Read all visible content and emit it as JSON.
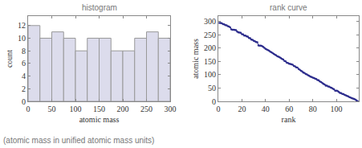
{
  "chart_data": [
    {
      "type": "histogram",
      "title": "histogram",
      "xlabel": "atomic mass",
      "ylabel": "count",
      "bins": [
        0,
        25,
        50,
        75,
        100,
        125,
        150,
        175,
        200,
        225,
        250,
        275,
        300
      ],
      "counts": [
        12,
        10,
        11,
        10,
        8,
        10,
        10,
        8,
        8,
        10,
        11,
        10
      ],
      "color": "#dcdcec",
      "xlim": [
        0,
        300
      ],
      "xticks": [
        0,
        50,
        100,
        150,
        200,
        250,
        300
      ],
      "ylim": [
        0,
        13.5
      ],
      "yticks": [
        0,
        2,
        4,
        6,
        8,
        10,
        12
      ],
      "grid": false
    },
    {
      "type": "line",
      "title": "rank curve",
      "xlabel": "rank",
      "ylabel": "atomic mass",
      "x": [
        1,
        2,
        3,
        4,
        5,
        6,
        7,
        8,
        9,
        10,
        11,
        12,
        13,
        14,
        15,
        16,
        17,
        18,
        19,
        20,
        21,
        22,
        23,
        24,
        25,
        26,
        27,
        28,
        29,
        30,
        31,
        32,
        33,
        34,
        35,
        36,
        37,
        38,
        39,
        40,
        41,
        42,
        43,
        44,
        45,
        46,
        47,
        48,
        49,
        50,
        51,
        52,
        53,
        54,
        55,
        56,
        57,
        58,
        59,
        60,
        61,
        62,
        63,
        64,
        65,
        66,
        67,
        68,
        69,
        70,
        71,
        72,
        73,
        74,
        75,
        76,
        77,
        78,
        79,
        80,
        81,
        82,
        83,
        84,
        85,
        86,
        87,
        88,
        89,
        90,
        91,
        92,
        93,
        94,
        95,
        96,
        97,
        98,
        99,
        100,
        101,
        102,
        103,
        104,
        105,
        106,
        107,
        108,
        109,
        110,
        111,
        112,
        113,
        114,
        115,
        116,
        117,
        118
      ],
      "values": [
        294,
        294,
        293,
        290,
        289,
        286,
        285,
        282,
        281,
        278,
        270,
        269,
        269,
        268,
        267,
        262,
        259,
        258,
        257,
        252,
        251,
        247,
        247,
        244,
        243,
        238.03,
        237,
        232.04,
        231.04,
        227,
        226,
        223,
        222,
        210,
        209,
        208.98,
        207.2,
        204.38,
        200.59,
        196.97,
        195.08,
        192.22,
        190.23,
        186.21,
        183.84,
        180.95,
        178.49,
        174.97,
        173.05,
        168.93,
        167.26,
        164.93,
        162.5,
        158.93,
        157.25,
        151.96,
        150.36,
        145,
        144.24,
        140.91,
        140.12,
        138.91,
        137.33,
        132.91,
        131.29,
        127.6,
        126.9,
        121.76,
        118.71,
        114.82,
        112.41,
        107.87,
        106.42,
        102.91,
        101.07,
        98,
        95.95,
        92.91,
        91.22,
        88.91,
        87.62,
        85.47,
        83.8,
        79.9,
        78.97,
        74.92,
        72.63,
        69.72,
        65.38,
        63.55,
        58.93,
        58.69,
        55.85,
        54.94,
        52,
        50.94,
        47.87,
        44.96,
        40.08,
        39.95,
        39.1,
        35.45,
        32.06,
        30.97,
        28.09,
        26.98,
        24.31,
        22.99,
        20.18,
        19,
        16,
        14.01,
        12.01,
        10.81,
        9.01,
        6.94,
        4,
        1.01
      ],
      "color": "#2c2c8c",
      "marker": "circle",
      "line_style": "solid",
      "xlim": [
        0,
        119
      ],
      "xticks": [
        0,
        20,
        40,
        60,
        80,
        100
      ],
      "ylim": [
        0,
        320
      ],
      "yticks": [
        0,
        50,
        100,
        150,
        200,
        250,
        300
      ],
      "grid": false
    }
  ],
  "caption": "(atomic mass in unified atomic mass units)"
}
